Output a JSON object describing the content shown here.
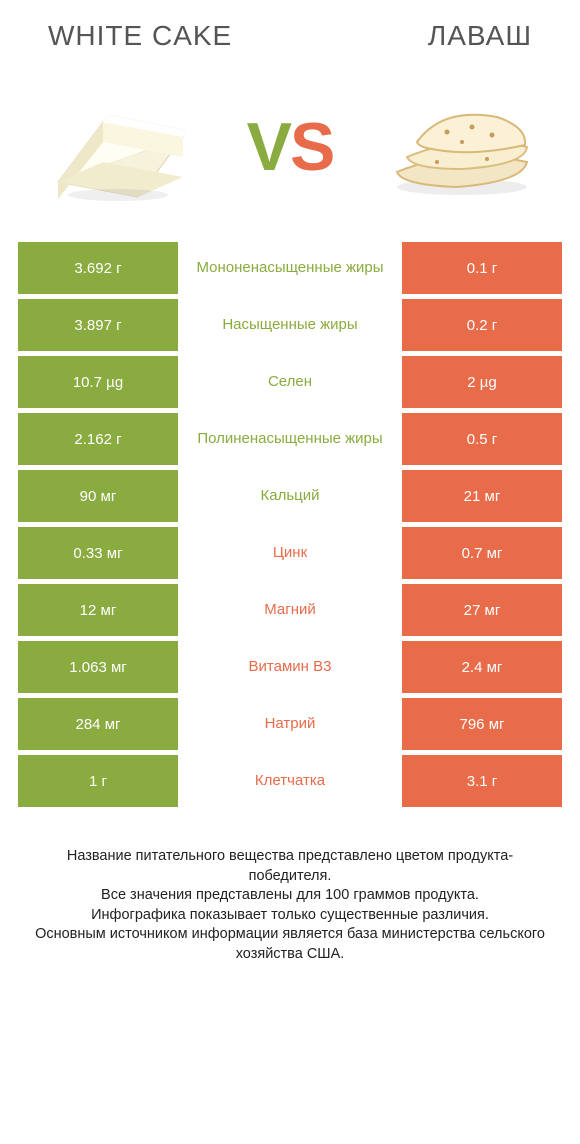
{
  "colors": {
    "green": "#8aab3f",
    "orange": "#e86b4a",
    "title_text": "#555555",
    "footer_text": "#222222",
    "white": "#ffffff",
    "row_gap": 5
  },
  "header": {
    "left_title": "WHITE CAKE",
    "right_title": "ЛАВАШ",
    "vs_v": "V",
    "vs_s": "S"
  },
  "rows": [
    {
      "left": "3.692 г",
      "label": "Мононенасыщенные жиры",
      "right": "0.1 г",
      "winner": "left"
    },
    {
      "left": "3.897 г",
      "label": "Насыщенные жиры",
      "right": "0.2 г",
      "winner": "left"
    },
    {
      "left": "10.7 µg",
      "label": "Селен",
      "right": "2 µg",
      "winner": "left"
    },
    {
      "left": "2.162 г",
      "label": "Полиненасыщенные жиры",
      "right": "0.5 г",
      "winner": "left"
    },
    {
      "left": "90 мг",
      "label": "Кальций",
      "right": "21 мг",
      "winner": "left"
    },
    {
      "left": "0.33 мг",
      "label": "Цинк",
      "right": "0.7 мг",
      "winner": "right"
    },
    {
      "left": "12 мг",
      "label": "Магний",
      "right": "27 мг",
      "winner": "right"
    },
    {
      "left": "1.063 мг",
      "label": "Витамин B3",
      "right": "2.4 мг",
      "winner": "right"
    },
    {
      "left": "284 мг",
      "label": "Натрий",
      "right": "796 мг",
      "winner": "right"
    },
    {
      "left": "1 г",
      "label": "Клетчатка",
      "right": "3.1 г",
      "winner": "right"
    }
  ],
  "footer": {
    "line1": "Название питательного вещества представлено цветом продукта-победителя.",
    "line2": "Все значения представлены для 100 граммов продукта.",
    "line3": "Инфографика показывает только существенные различия.",
    "line4": "Основным источником информации является база министерства сельского хозяйства США."
  }
}
